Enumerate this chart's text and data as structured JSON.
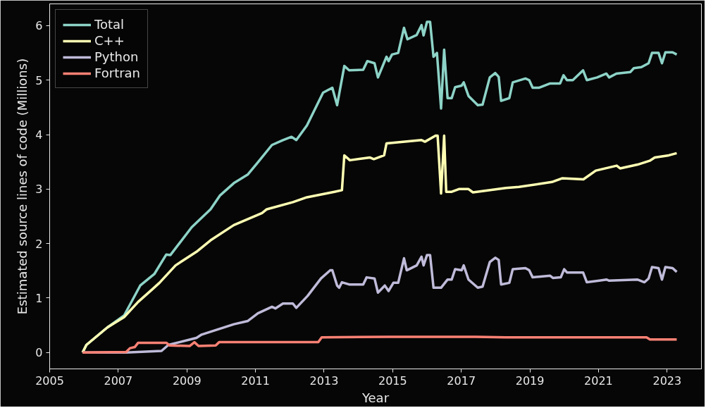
{
  "chart_data": {
    "type": "line",
    "xlabel": "Year",
    "ylabel": "Estimated source lines of code (Millions)",
    "xlim": [
      2005,
      2024
    ],
    "ylim": [
      -0.3,
      6.4
    ],
    "xticks": [
      2005,
      2007,
      2009,
      2011,
      2013,
      2015,
      2017,
      2019,
      2021,
      2023
    ],
    "yticks": [
      0,
      1,
      2,
      3,
      4,
      5,
      6
    ],
    "legend": "top left",
    "grid": false,
    "marker": "none",
    "line_style": "solid",
    "series": [
      {
        "name": "Total",
        "color": "#8dd3c7",
        "x": [
          2005.96,
          2006.07,
          2006.68,
          2007.17,
          2007.64,
          2008.05,
          2008.4,
          2008.52,
          2009.14,
          2009.69,
          2009.96,
          2010.37,
          2010.78,
          2011.07,
          2011.48,
          2011.8,
          2012.05,
          2012.19,
          2012.5,
          2012.97,
          2013.24,
          2013.38,
          2013.59,
          2013.73,
          2014.14,
          2014.26,
          2014.47,
          2014.57,
          2014.82,
          2014.88,
          2014.98,
          2015.16,
          2015.33,
          2015.43,
          2015.7,
          2015.84,
          2015.9,
          2016.0,
          2016.09,
          2016.19,
          2016.29,
          2016.41,
          2016.5,
          2016.6,
          2016.72,
          2016.82,
          2017.01,
          2017.07,
          2017.21,
          2017.48,
          2017.62,
          2017.83,
          2017.99,
          2018.09,
          2018.16,
          2018.4,
          2018.5,
          2018.87,
          2018.98,
          2019.08,
          2019.26,
          2019.59,
          2019.88,
          2019.98,
          2020.08,
          2020.25,
          2020.55,
          2020.66,
          2020.96,
          2021.23,
          2021.31,
          2021.52,
          2021.93,
          2022.03,
          2022.25,
          2022.46,
          2022.56,
          2022.75,
          2022.85,
          2022.95,
          2023.16,
          2023.28
        ],
        "values": [
          0,
          0.14,
          0.46,
          0.68,
          1.23,
          1.44,
          1.8,
          1.79,
          2.3,
          2.63,
          2.88,
          3.11,
          3.27,
          3.49,
          3.81,
          3.9,
          3.96,
          3.9,
          4.17,
          4.77,
          4.86,
          4.54,
          5.26,
          5.18,
          5.19,
          5.35,
          5.31,
          5.05,
          5.43,
          5.35,
          5.47,
          5.5,
          5.96,
          5.75,
          5.83,
          6.01,
          5.82,
          6.07,
          6.07,
          5.43,
          5.5,
          4.48,
          5.56,
          4.67,
          4.67,
          4.87,
          4.9,
          4.96,
          4.71,
          4.54,
          4.55,
          5.05,
          5.13,
          5.06,
          4.62,
          4.67,
          4.96,
          5.03,
          5.0,
          4.86,
          4.86,
          4.94,
          4.94,
          5.09,
          5.0,
          5.0,
          5.18,
          5.0,
          5.05,
          5.12,
          5.05,
          5.12,
          5.15,
          5.22,
          5.24,
          5.31,
          5.5,
          5.5,
          5.31,
          5.51,
          5.51,
          5.47
        ]
      },
      {
        "name": "C++",
        "color": "#feffb3",
        "x": [
          2005.96,
          2006.07,
          2006.68,
          2007.17,
          2007.58,
          2007.99,
          2008.2,
          2008.67,
          2009.28,
          2009.69,
          2010.37,
          2011.19,
          2011.33,
          2012.09,
          2012.5,
          2013.3,
          2013.52,
          2013.59,
          2013.75,
          2014.34,
          2014.45,
          2014.75,
          2014.82,
          2015.84,
          2015.94,
          2016.25,
          2016.31,
          2016.41,
          2016.5,
          2016.56,
          2016.72,
          2016.93,
          2017.21,
          2017.34,
          2018.3,
          2018.68,
          2019.64,
          2019.95,
          2020.56,
          2020.92,
          2021.53,
          2021.63,
          2022.14,
          2022.49,
          2022.64,
          2023.05,
          2023.28
        ],
        "values": [
          0,
          0.14,
          0.46,
          0.65,
          0.93,
          1.16,
          1.28,
          1.6,
          1.85,
          2.06,
          2.34,
          2.56,
          2.63,
          2.76,
          2.85,
          2.95,
          2.98,
          3.62,
          3.53,
          3.58,
          3.55,
          3.62,
          3.84,
          3.9,
          3.87,
          3.98,
          3.98,
          2.92,
          3.98,
          2.95,
          2.95,
          3.0,
          3.0,
          2.94,
          3.02,
          3.04,
          3.13,
          3.2,
          3.18,
          3.34,
          3.43,
          3.38,
          3.45,
          3.52,
          3.58,
          3.62,
          3.66
        ]
      },
      {
        "name": "Python",
        "color": "#bfbbd9",
        "x": [
          2005.96,
          2007.23,
          2008.26,
          2008.46,
          2009.28,
          2009.43,
          2010.37,
          2010.78,
          2011.07,
          2011.48,
          2011.58,
          2011.8,
          2012.09,
          2012.19,
          2012.52,
          2012.91,
          2013.18,
          2013.24,
          2013.38,
          2013.44,
          2013.52,
          2013.73,
          2014.14,
          2014.24,
          2014.47,
          2014.57,
          2014.77,
          2014.88,
          2015.02,
          2015.16,
          2015.33,
          2015.41,
          2015.7,
          2015.84,
          2015.9,
          2016.0,
          2016.09,
          2016.19,
          2016.41,
          2016.6,
          2016.72,
          2016.82,
          2017.01,
          2017.07,
          2017.21,
          2017.48,
          2017.62,
          2017.83,
          2017.99,
          2018.09,
          2018.16,
          2018.4,
          2018.5,
          2018.87,
          2018.98,
          2019.08,
          2019.59,
          2019.67,
          2019.9,
          2020.0,
          2020.08,
          2020.55,
          2020.66,
          2021.02,
          2021.23,
          2021.31,
          2022.13,
          2022.34,
          2022.46,
          2022.56,
          2022.75,
          2022.85,
          2022.95,
          2023.16,
          2023.28
        ],
        "values": [
          0,
          0,
          0.03,
          0.14,
          0.27,
          0.33,
          0.52,
          0.58,
          0.72,
          0.84,
          0.81,
          0.9,
          0.9,
          0.82,
          1.04,
          1.36,
          1.51,
          1.51,
          1.23,
          1.19,
          1.29,
          1.25,
          1.25,
          1.38,
          1.36,
          1.1,
          1.23,
          1.13,
          1.28,
          1.28,
          1.73,
          1.51,
          1.6,
          1.76,
          1.6,
          1.79,
          1.79,
          1.19,
          1.19,
          1.34,
          1.34,
          1.53,
          1.51,
          1.6,
          1.34,
          1.19,
          1.21,
          1.66,
          1.74,
          1.7,
          1.25,
          1.28,
          1.53,
          1.55,
          1.51,
          1.38,
          1.41,
          1.37,
          1.38,
          1.53,
          1.47,
          1.47,
          1.29,
          1.32,
          1.34,
          1.32,
          1.34,
          1.29,
          1.36,
          1.57,
          1.55,
          1.34,
          1.57,
          1.55,
          1.48
        ]
      },
      {
        "name": "Fortran",
        "color": "#fa8174",
        "x": [
          2005.96,
          2007.23,
          2007.34,
          2007.48,
          2007.58,
          2008.4,
          2008.5,
          2009.08,
          2009.22,
          2009.34,
          2009.84,
          2009.94,
          2012.56,
          2012.83,
          2012.93,
          2014.88,
          2017.42,
          2018.3,
          2022.4,
          2022.5,
          2023.28
        ],
        "values": [
          0,
          0.01,
          0.08,
          0.1,
          0.18,
          0.18,
          0.13,
          0.12,
          0.19,
          0.12,
          0.13,
          0.19,
          0.19,
          0.19,
          0.28,
          0.29,
          0.29,
          0.28,
          0.28,
          0.24,
          0.24
        ]
      }
    ]
  }
}
